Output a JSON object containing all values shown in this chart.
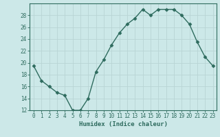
{
  "x": [
    0,
    1,
    2,
    3,
    4,
    5,
    6,
    7,
    8,
    9,
    10,
    11,
    12,
    13,
    14,
    15,
    16,
    17,
    18,
    19,
    20,
    21,
    22,
    23
  ],
  "y": [
    19.5,
    17.0,
    16.0,
    15.0,
    14.5,
    12.0,
    12.0,
    14.0,
    18.5,
    20.5,
    23.0,
    25.0,
    26.5,
    27.5,
    29.0,
    28.0,
    29.0,
    29.0,
    29.0,
    28.0,
    26.5,
    23.5,
    21.0,
    19.5
  ],
  "line_color": "#2e6b5e",
  "marker": "D",
  "marker_size": 2.5,
  "line_width": 1.0,
  "bg_color": "#cce8e8",
  "grid_color": "#b8d4d4",
  "xlabel": "Humidex (Indice chaleur)",
  "ylim": [
    12,
    30
  ],
  "xlim": [
    -0.5,
    23.5
  ],
  "yticks": [
    12,
    14,
    16,
    18,
    20,
    22,
    24,
    26,
    28
  ],
  "xticks": [
    0,
    1,
    2,
    3,
    4,
    5,
    6,
    7,
    8,
    9,
    10,
    11,
    12,
    13,
    14,
    15,
    16,
    17,
    18,
    19,
    20,
    21,
    22,
    23
  ],
  "tick_color": "#2e6b5e",
  "label_fontsize": 6.5,
  "tick_fontsize": 5.5,
  "axis_color": "#2e6b5e"
}
